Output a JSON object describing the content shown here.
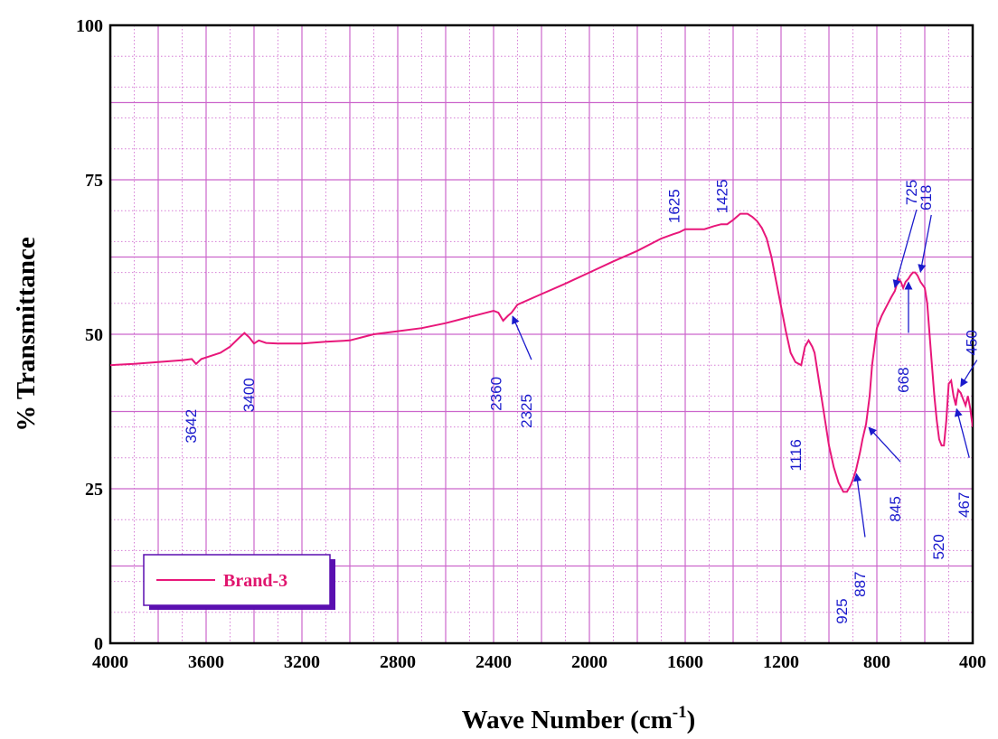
{
  "chart_data": {
    "type": "line",
    "xlabel": "Wave Number (cm",
    "xlabel_sup": "-1",
    "xlabel_end": ")",
    "ylabel": "% Transmittance",
    "xlim": [
      4000,
      400
    ],
    "ylim": [
      0,
      100
    ],
    "x_ticks": [
      4000,
      3600,
      3200,
      2800,
      2400,
      2000,
      1600,
      1200,
      800,
      400
    ],
    "y_ticks": [
      0,
      25,
      50,
      75,
      100
    ],
    "grid": true,
    "legend_position": "bottom-left",
    "series": [
      {
        "name": "Brand-3",
        "color": "#e8177a",
        "x": [
          4000,
          3900,
          3800,
          3700,
          3660,
          3642,
          3620,
          3580,
          3540,
          3500,
          3460,
          3440,
          3420,
          3400,
          3380,
          3350,
          3300,
          3200,
          3100,
          3000,
          2950,
          2900,
          2800,
          2700,
          2600,
          2500,
          2400,
          2380,
          2360,
          2340,
          2325,
          2300,
          2200,
          2100,
          2000,
          1900,
          1800,
          1700,
          1650,
          1625,
          1600,
          1560,
          1520,
          1480,
          1450,
          1425,
          1400,
          1370,
          1340,
          1320,
          1300,
          1280,
          1260,
          1240,
          1220,
          1200,
          1180,
          1160,
          1140,
          1116,
          1100,
          1085,
          1070,
          1060,
          1040,
          1020,
          1000,
          980,
          960,
          940,
          925,
          910,
          900,
          887,
          870,
          860,
          845,
          830,
          820,
          800,
          780,
          760,
          740,
          725,
          710,
          700,
          690,
          680,
          668,
          660,
          650,
          640,
          630,
          618,
          600,
          590,
          580,
          570,
          560,
          550,
          540,
          530,
          520,
          510,
          500,
          490,
          480,
          470,
          467,
          460,
          450,
          440,
          430,
          420,
          410,
          400
        ],
        "y": [
          45,
          45.2,
          45.5,
          45.8,
          46,
          45.2,
          46,
          46.5,
          47,
          48,
          49.5,
          50.2,
          49.5,
          48.5,
          49,
          48.6,
          48.5,
          48.5,
          48.8,
          49,
          49.5,
          50,
          50.5,
          51,
          51.8,
          52.8,
          53.8,
          53.5,
          52.2,
          53,
          53.5,
          54.8,
          56.5,
          58.2,
          60,
          61.8,
          63.5,
          65.5,
          66.2,
          66.5,
          67,
          67,
          67,
          67.5,
          67.8,
          67.8,
          68.5,
          69.5,
          69.5,
          69,
          68.3,
          67.2,
          65.5,
          62.5,
          58.5,
          54.5,
          50.5,
          47,
          45.5,
          45,
          48,
          49,
          48,
          47,
          42,
          37,
          32,
          28.5,
          26,
          24.5,
          24.5,
          25.5,
          26.5,
          28,
          31,
          33,
          35.5,
          40,
          45,
          51,
          53,
          54.5,
          56,
          57,
          59,
          58.5,
          57.5,
          58.5,
          59,
          59.5,
          60,
          60,
          59.5,
          58.5,
          57.5,
          55,
          50,
          45,
          40,
          36,
          33,
          32,
          32,
          36,
          42,
          42.5,
          40,
          38.5,
          39.5,
          41,
          40.5,
          39.5,
          38.5,
          40,
          38,
          35
        ]
      }
    ],
    "annotations": [
      {
        "x": 3642,
        "y": 45.2,
        "label": "3642"
      },
      {
        "x": 3400,
        "y": 48.5,
        "label": "3400"
      },
      {
        "x": 2360,
        "y": 52.2,
        "label": "2360"
      },
      {
        "x": 2325,
        "y": 53.5,
        "label": "2325"
      },
      {
        "x": 1625,
        "y": 66.5,
        "label": "1625"
      },
      {
        "x": 1425,
        "y": 67.8,
        "label": "1425"
      },
      {
        "x": 1116,
        "y": 45,
        "label": "1116"
      },
      {
        "x": 925,
        "y": 24.5,
        "label": "925"
      },
      {
        "x": 887,
        "y": 28,
        "label": "887"
      },
      {
        "x": 845,
        "y": 35.5,
        "label": "845"
      },
      {
        "x": 725,
        "y": 57,
        "label": "725"
      },
      {
        "x": 668,
        "y": 59,
        "label": "668"
      },
      {
        "x": 618,
        "y": 59.5,
        "label": "618"
      },
      {
        "x": 520,
        "y": 32,
        "label": "520"
      },
      {
        "x": 467,
        "y": 38.5,
        "label": "467"
      },
      {
        "x": 450,
        "y": 41,
        "label": "450"
      }
    ]
  }
}
